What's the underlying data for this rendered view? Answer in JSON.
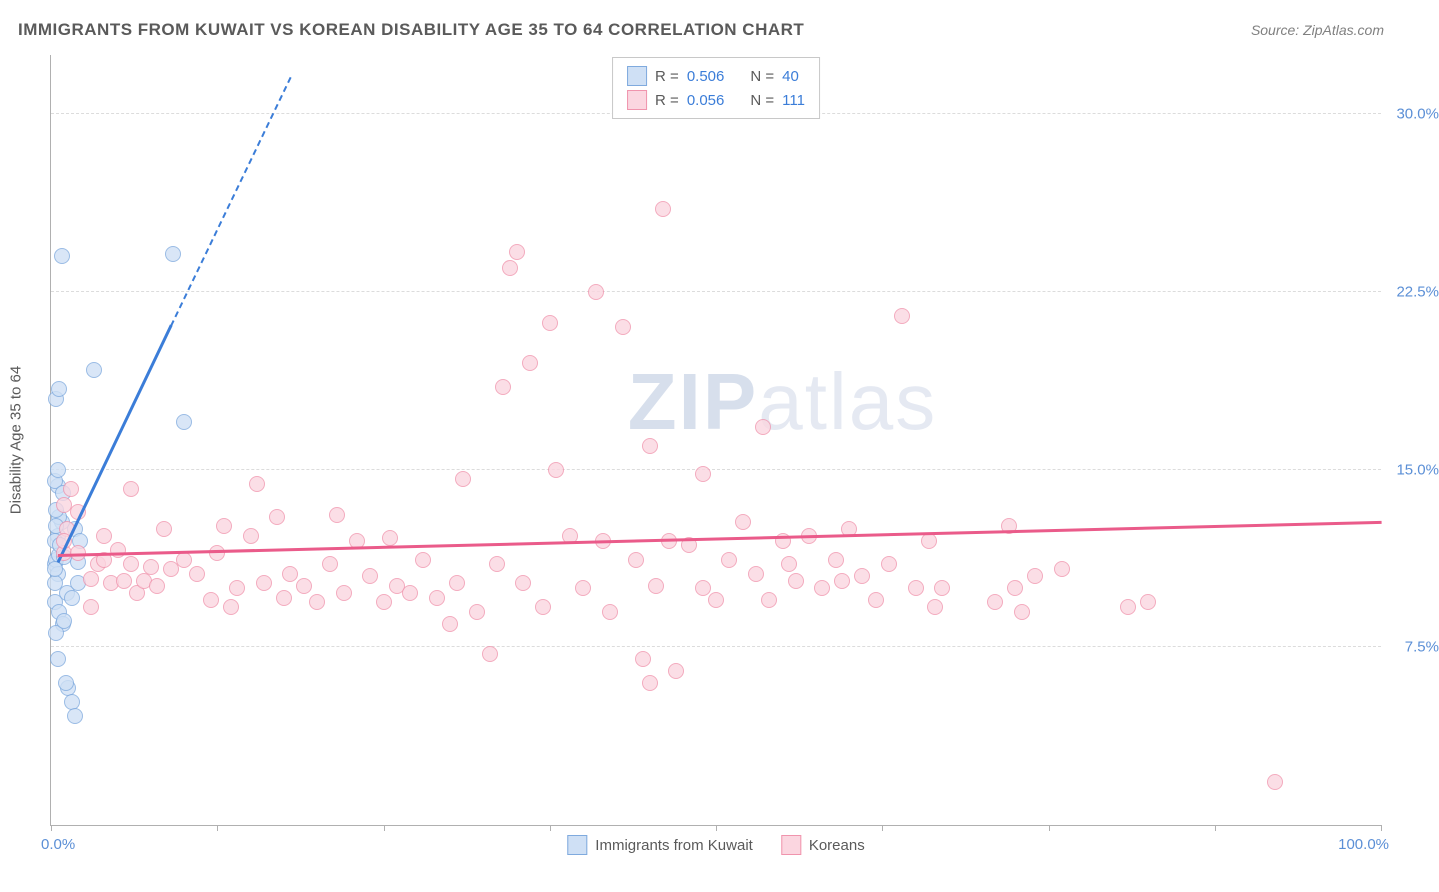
{
  "title": "IMMIGRANTS FROM KUWAIT VS KOREAN DISABILITY AGE 35 TO 64 CORRELATION CHART",
  "source": "Source: ZipAtlas.com",
  "watermark_bold": "ZIP",
  "watermark_rest": "atlas",
  "chart": {
    "type": "scatter",
    "xlim": [
      0,
      100
    ],
    "ylim": [
      0,
      32.5
    ],
    "y_ticks": [
      7.5,
      15.0,
      22.5,
      30.0
    ],
    "y_tick_labels": [
      "7.5%",
      "15.0%",
      "22.5%",
      "30.0%"
    ],
    "x_ticks": [
      0,
      12.5,
      25,
      37.5,
      50,
      62.5,
      75,
      87.5,
      100
    ],
    "x_min_label": "0.0%",
    "x_max_label": "100.0%",
    "y_axis_label": "Disability Age 35 to 64",
    "grid_color": "#dcdcdc",
    "axis_color": "#b0b0b0",
    "background_color": "#ffffff",
    "tick_label_color": "#5b8fd6",
    "series": [
      {
        "name": "Immigrants from Kuwait",
        "fill": "#cfe0f5",
        "stroke": "#7faade",
        "trend_color": "#3b7dd8",
        "r_label": "R =",
        "r_value": "0.506",
        "n_label": "N =",
        "n_value": "40",
        "trend": {
          "x1": 0.5,
          "y1": 11.0,
          "x2": 9.0,
          "y2": 21.0,
          "dash_to_x": 18.0,
          "dash_to_y": 31.5
        },
        "points": [
          [
            0.3,
            11.0
          ],
          [
            0.4,
            11.2
          ],
          [
            0.5,
            10.6
          ],
          [
            0.6,
            11.4
          ],
          [
            0.5,
            12.2
          ],
          [
            0.8,
            12.8
          ],
          [
            0.6,
            13.0
          ],
          [
            0.4,
            13.3
          ],
          [
            0.3,
            9.4
          ],
          [
            0.6,
            9.0
          ],
          [
            0.9,
            8.5
          ],
          [
            1.2,
            9.8
          ],
          [
            1.6,
            9.6
          ],
          [
            2.0,
            10.2
          ],
          [
            0.5,
            14.3
          ],
          [
            0.3,
            14.5
          ],
          [
            0.3,
            10.2
          ],
          [
            0.4,
            8.1
          ],
          [
            1.0,
            8.6
          ],
          [
            1.3,
            5.8
          ],
          [
            1.6,
            5.2
          ],
          [
            1.8,
            4.6
          ],
          [
            1.1,
            6.0
          ],
          [
            0.3,
            12.0
          ],
          [
            1.8,
            12.5
          ],
          [
            2.0,
            11.1
          ],
          [
            2.2,
            12.0
          ],
          [
            0.4,
            18.0
          ],
          [
            0.6,
            18.4
          ],
          [
            0.9,
            14.0
          ],
          [
            0.5,
            15.0
          ],
          [
            3.2,
            19.2
          ],
          [
            0.8,
            24.0
          ],
          [
            9.2,
            24.1
          ],
          [
            10.0,
            17.0
          ],
          [
            0.5,
            7.0
          ],
          [
            0.3,
            10.8
          ],
          [
            0.4,
            12.6
          ],
          [
            0.7,
            11.8
          ],
          [
            1.0,
            11.3
          ]
        ]
      },
      {
        "name": "Koreans",
        "fill": "#fbd6e0",
        "stroke": "#f094ad",
        "trend_color": "#ea5b8a",
        "r_label": "R =",
        "r_value": "0.056",
        "n_label": "N =",
        "n_value": "111",
        "trend": {
          "x1": 0.5,
          "y1": 11.3,
          "x2": 100,
          "y2": 12.7
        },
        "points": [
          [
            1.0,
            13.5
          ],
          [
            1.2,
            12.5
          ],
          [
            1.5,
            14.2
          ],
          [
            1.0,
            11.5
          ],
          [
            2.0,
            11.5
          ],
          [
            3.0,
            10.4
          ],
          [
            3.5,
            11.0
          ],
          [
            4.0,
            11.2
          ],
          [
            4.5,
            10.2
          ],
          [
            5.0,
            11.6
          ],
          [
            5.5,
            10.3
          ],
          [
            6.0,
            11.0
          ],
          [
            6.5,
            9.8
          ],
          [
            7.0,
            10.3
          ],
          [
            7.5,
            10.9
          ],
          [
            8.0,
            10.1
          ],
          [
            9.0,
            10.8
          ],
          [
            10.0,
            11.2
          ],
          [
            11.0,
            10.6
          ],
          [
            12.0,
            9.5
          ],
          [
            12.5,
            11.5
          ],
          [
            13.0,
            12.6
          ],
          [
            13.5,
            9.2
          ],
          [
            14.0,
            10.0
          ],
          [
            15.0,
            12.2
          ],
          [
            15.5,
            14.4
          ],
          [
            16.0,
            10.2
          ],
          [
            17.0,
            13.0
          ],
          [
            17.5,
            9.6
          ],
          [
            18.0,
            10.6
          ],
          [
            19.0,
            10.1
          ],
          [
            20.0,
            9.4
          ],
          [
            21.0,
            11.0
          ],
          [
            21.5,
            13.1
          ],
          [
            22.0,
            9.8
          ],
          [
            23.0,
            12.0
          ],
          [
            24.0,
            10.5
          ],
          [
            25.0,
            9.4
          ],
          [
            25.5,
            12.1
          ],
          [
            26.0,
            10.1
          ],
          [
            27.0,
            9.8
          ],
          [
            28.0,
            11.2
          ],
          [
            29.0,
            9.6
          ],
          [
            30.0,
            8.5
          ],
          [
            30.5,
            10.2
          ],
          [
            31.0,
            14.6
          ],
          [
            32.0,
            9.0
          ],
          [
            33.0,
            7.2
          ],
          [
            33.5,
            11.0
          ],
          [
            34.0,
            18.5
          ],
          [
            34.5,
            23.5
          ],
          [
            35.0,
            24.2
          ],
          [
            35.5,
            10.2
          ],
          [
            36.0,
            19.5
          ],
          [
            37.0,
            9.2
          ],
          [
            37.5,
            21.2
          ],
          [
            38.0,
            15.0
          ],
          [
            39.0,
            12.2
          ],
          [
            40.0,
            10.0
          ],
          [
            41.0,
            22.5
          ],
          [
            41.5,
            12.0
          ],
          [
            42.0,
            9.0
          ],
          [
            43.0,
            21.0
          ],
          [
            44.0,
            11.2
          ],
          [
            44.5,
            7.0
          ],
          [
            45.0,
            16.0
          ],
          [
            45.5,
            10.1
          ],
          [
            46.0,
            26.0
          ],
          [
            46.5,
            12.0
          ],
          [
            47.0,
            6.5
          ],
          [
            48.0,
            11.8
          ],
          [
            49.0,
            10.0
          ],
          [
            49.0,
            14.8
          ],
          [
            50.0,
            9.5
          ],
          [
            51.0,
            11.2
          ],
          [
            52.0,
            12.8
          ],
          [
            53.0,
            10.6
          ],
          [
            53.5,
            16.8
          ],
          [
            54.0,
            9.5
          ],
          [
            55.0,
            12.0
          ],
          [
            55.5,
            11.0
          ],
          [
            56.0,
            10.3
          ],
          [
            57.0,
            12.2
          ],
          [
            58.0,
            10.0
          ],
          [
            59.0,
            11.2
          ],
          [
            59.5,
            10.3
          ],
          [
            60.0,
            12.5
          ],
          [
            61.0,
            10.5
          ],
          [
            62.0,
            9.5
          ],
          [
            63.0,
            11.0
          ],
          [
            64.0,
            21.5
          ],
          [
            65.0,
            10.0
          ],
          [
            66.0,
            12.0
          ],
          [
            66.5,
            9.2
          ],
          [
            67.0,
            10.0
          ],
          [
            71.0,
            9.4
          ],
          [
            72.0,
            12.6
          ],
          [
            72.5,
            10.0
          ],
          [
            73.0,
            9.0
          ],
          [
            74.0,
            10.5
          ],
          [
            76.0,
            10.8
          ],
          [
            81.0,
            9.2
          ],
          [
            82.5,
            9.4
          ],
          [
            92.0,
            1.8
          ],
          [
            1.0,
            12.0
          ],
          [
            2.0,
            13.2
          ],
          [
            8.5,
            12.5
          ],
          [
            3.0,
            9.2
          ],
          [
            4.0,
            12.2
          ],
          [
            6.0,
            14.2
          ],
          [
            45.0,
            6.0
          ]
        ]
      }
    ]
  }
}
